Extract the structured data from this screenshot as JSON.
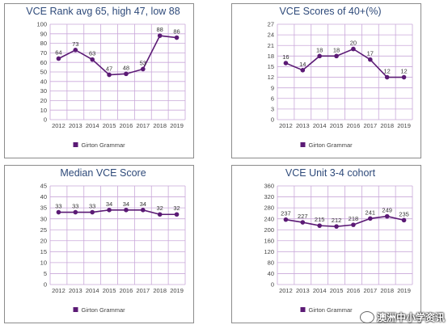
{
  "colors": {
    "series": "#5b1a75",
    "grid": "#c9a8d9",
    "title": "#2e4a7a"
  },
  "watermark": "澳洲中小学资讯",
  "chart_data": [
    {
      "type": "line",
      "title": "VCE Rank avg 65, high 47, low 88",
      "categories": [
        "2012",
        "2013",
        "2014",
        "2015",
        "2016",
        "2017",
        "2018",
        "2019"
      ],
      "series": [
        {
          "name": "Girton Grammar",
          "values": [
            64,
            73,
            63,
            47,
            48,
            53,
            88,
            86
          ]
        }
      ],
      "ylim": [
        0,
        100
      ],
      "yticks": [
        0,
        10,
        20,
        30,
        40,
        50,
        60,
        70,
        80,
        90,
        100
      ],
      "grid": true,
      "legend": "bottom"
    },
    {
      "type": "line",
      "title": "VCE Scores of 40+(%)",
      "categories": [
        "2012",
        "2013",
        "2014",
        "2015",
        "2016",
        "2017",
        "2018",
        "2019"
      ],
      "series": [
        {
          "name": "Girton Grammar",
          "values": [
            16,
            14,
            18,
            18,
            20,
            17,
            12,
            12
          ]
        }
      ],
      "ylim": [
        0,
        27
      ],
      "yticks": [
        0,
        3,
        6,
        9,
        12,
        15,
        18,
        21,
        24,
        27
      ],
      "grid": true,
      "legend": "bottom"
    },
    {
      "type": "line",
      "title": "Median VCE Score",
      "categories": [
        "2012",
        "2013",
        "2014",
        "2015",
        "2016",
        "2017",
        "2018",
        "2019"
      ],
      "series": [
        {
          "name": "Girton Grammar",
          "values": [
            33,
            33,
            33,
            34,
            34,
            34,
            32,
            32
          ]
        }
      ],
      "ylim": [
        0,
        45
      ],
      "yticks": [
        0,
        5,
        10,
        15,
        20,
        25,
        30,
        35,
        40,
        45
      ],
      "grid": true,
      "legend": "bottom"
    },
    {
      "type": "line",
      "title": "VCE Unit 3-4 cohort",
      "categories": [
        "2012",
        "2013",
        "2014",
        "2015",
        "2016",
        "2017",
        "2018",
        "2019"
      ],
      "series": [
        {
          "name": "Girton Grammar",
          "values": [
            237,
            227,
            215,
            212,
            218,
            241,
            249,
            235
          ]
        }
      ],
      "ylim": [
        0,
        360
      ],
      "yticks": [
        0,
        40,
        80,
        120,
        160,
        200,
        240,
        280,
        320,
        360
      ],
      "grid": true,
      "legend": "bottom"
    }
  ]
}
